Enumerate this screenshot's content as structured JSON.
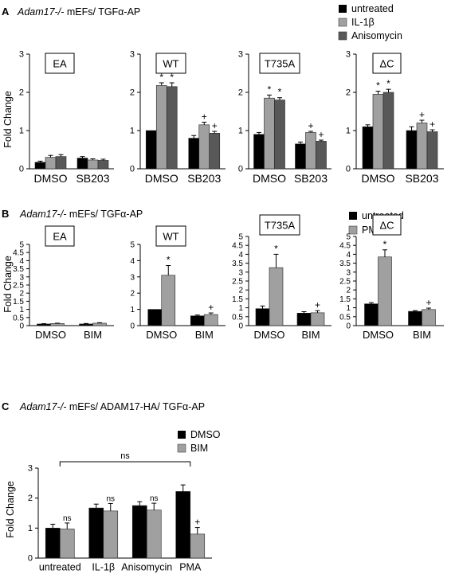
{
  "colors": {
    "black": "#000000",
    "light_gray": "#a0a0a0",
    "dark_gray": "#585858"
  },
  "panelA": {
    "letter": "A",
    "title_italic": "Adam17-/-",
    "title_rest": " mEFs/ TGFα-AP",
    "legend": [
      "untreated",
      "IL-1β",
      "Anisomycin"
    ],
    "ylabel": "Fold Change"
  },
  "panelB": {
    "letter": "B",
    "title_italic": "Adam17-/-",
    "title_rest": " mEFs/ TGFα-AP",
    "legend": [
      "untreated",
      "PMA"
    ],
    "ylabel": "Fold Change"
  },
  "panelC": {
    "letter": "C",
    "title_italic": "Adam17-/-",
    "title_rest": " mEFs/ ADAM17-HA/ TGFα-AP",
    "legend": [
      "DMSO",
      "BIM"
    ],
    "ylabel": "Fold Change",
    "bracket_label": "ns"
  },
  "chart_data": [
    {
      "id": "A-EA",
      "type": "bar",
      "box_label": "EA",
      "ylabel": "Fold Change",
      "ylim": [
        0,
        3
      ],
      "yticks": [
        0,
        1,
        2,
        3
      ],
      "categories": [
        "DMSO",
        "SB203"
      ],
      "series": [
        {
          "name": "untreated",
          "values": [
            0.17,
            0.28
          ],
          "errors": [
            0.03,
            0.04
          ]
        },
        {
          "name": "IL-1β",
          "values": [
            0.3,
            0.23
          ],
          "errors": [
            0.05,
            0.03
          ]
        },
        {
          "name": "Anisomycin",
          "values": [
            0.32,
            0.22
          ],
          "errors": [
            0.05,
            0.03
          ]
        }
      ],
      "marks": [
        [
          "",
          "",
          ""
        ],
        [
          "",
          "",
          ""
        ]
      ]
    },
    {
      "id": "A-WT",
      "type": "bar",
      "box_label": "WT",
      "ylim": [
        0,
        3
      ],
      "yticks": [
        0,
        1,
        2,
        3
      ],
      "categories": [
        "DMSO",
        "SB203"
      ],
      "series": [
        {
          "name": "untreated",
          "values": [
            1.0,
            0.8
          ],
          "errors": [
            0,
            0.07
          ]
        },
        {
          "name": "IL-1β",
          "values": [
            2.18,
            1.15
          ],
          "errors": [
            0.07,
            0.07
          ]
        },
        {
          "name": "Anisomycin",
          "values": [
            2.15,
            0.93
          ],
          "errors": [
            0.1,
            0.05
          ]
        }
      ],
      "marks": [
        [
          "",
          "*",
          "*"
        ],
        [
          "",
          "+",
          "+"
        ]
      ]
    },
    {
      "id": "A-T735A",
      "type": "bar",
      "box_label": "T735A",
      "ylim": [
        0,
        3
      ],
      "yticks": [
        0,
        1,
        2,
        3
      ],
      "categories": [
        "DMSO",
        "SB203"
      ],
      "series": [
        {
          "name": "untreated",
          "values": [
            0.9,
            0.65
          ],
          "errors": [
            0.05,
            0.05
          ]
        },
        {
          "name": "IL-1β",
          "values": [
            1.85,
            0.95
          ],
          "errors": [
            0.08,
            0.03
          ]
        },
        {
          "name": "Anisomycin",
          "values": [
            1.8,
            0.72
          ],
          "errors": [
            0.06,
            0.03
          ]
        }
      ],
      "marks": [
        [
          "",
          "*",
          "*"
        ],
        [
          "",
          "+",
          "+"
        ]
      ]
    },
    {
      "id": "A-dC",
      "type": "bar",
      "box_label": "ΔC",
      "ylim": [
        0,
        3
      ],
      "yticks": [
        0,
        1,
        2,
        3
      ],
      "categories": [
        "DMSO",
        "SB203"
      ],
      "series": [
        {
          "name": "untreated",
          "values": [
            1.1,
            1.0
          ],
          "errors": [
            0.05,
            0.1
          ]
        },
        {
          "name": "IL-1β",
          "values": [
            1.95,
            1.2
          ],
          "errors": [
            0.08,
            0.07
          ]
        },
        {
          "name": "Anisomycin",
          "values": [
            2.0,
            0.97
          ],
          "errors": [
            0.08,
            0.05
          ]
        }
      ],
      "marks": [
        [
          "",
          "*",
          "*"
        ],
        [
          "",
          "+",
          "+"
        ]
      ]
    },
    {
      "id": "B-EA",
      "type": "bar",
      "box_label": "EA",
      "ylabel": "Fold Change",
      "ylim": [
        0,
        5
      ],
      "yticks": [
        0,
        0.5,
        1,
        1.5,
        2,
        2.5,
        3,
        3.5,
        4,
        4.5,
        5
      ],
      "categories": [
        "DMSO",
        "BIM"
      ],
      "series": [
        {
          "name": "untreated",
          "values": [
            0.1,
            0.1
          ],
          "errors": [
            0.02,
            0.03
          ]
        },
        {
          "name": "PMA",
          "values": [
            0.13,
            0.15
          ],
          "errors": [
            0.02,
            0.03
          ]
        }
      ],
      "marks": [
        [
          "",
          ""
        ],
        [
          "",
          ""
        ]
      ]
    },
    {
      "id": "B-WT",
      "type": "bar",
      "box_label": "WT",
      "ylim": [
        0,
        5
      ],
      "yticks": [
        0,
        1,
        2,
        3,
        4,
        5
      ],
      "categories": [
        "DMSO",
        "BIM"
      ],
      "series": [
        {
          "name": "untreated",
          "values": [
            1.0,
            0.6
          ],
          "errors": [
            0,
            0.05
          ]
        },
        {
          "name": "PMA",
          "values": [
            3.1,
            0.68
          ],
          "errors": [
            0.6,
            0.1
          ]
        }
      ],
      "marks": [
        [
          "",
          "*"
        ],
        [
          "",
          "+"
        ]
      ]
    },
    {
      "id": "B-T735A",
      "type": "bar",
      "box_label": "T735A",
      "ylim": [
        0,
        5
      ],
      "yticks": [
        0,
        0.5,
        1,
        1.5,
        2,
        2.5,
        3,
        3.5,
        4,
        4.5,
        5
      ],
      "categories": [
        "DMSO",
        "BIM"
      ],
      "series": [
        {
          "name": "untreated",
          "values": [
            0.95,
            0.7
          ],
          "errors": [
            0.15,
            0.08
          ]
        },
        {
          "name": "PMA",
          "values": [
            3.25,
            0.72
          ],
          "errors": [
            0.75,
            0.12
          ]
        }
      ],
      "marks": [
        [
          "",
          "*"
        ],
        [
          "",
          "+"
        ]
      ]
    },
    {
      "id": "B-dC",
      "type": "bar",
      "box_label": "ΔC",
      "ylim": [
        0,
        5
      ],
      "yticks": [
        0,
        0.5,
        1,
        1.5,
        2,
        2.5,
        3,
        3.5,
        4,
        4.5,
        5
      ],
      "categories": [
        "DMSO",
        "BIM"
      ],
      "series": [
        {
          "name": "untreated",
          "values": [
            1.22,
            0.8
          ],
          "errors": [
            0.07,
            0.04
          ]
        },
        {
          "name": "PMA",
          "values": [
            3.85,
            0.9
          ],
          "errors": [
            0.4,
            0.08
          ]
        }
      ],
      "marks": [
        [
          "",
          "*"
        ],
        [
          "",
          "+"
        ]
      ]
    },
    {
      "id": "C",
      "type": "bar",
      "ylabel": "Fold Change",
      "ylim": [
        0,
        3
      ],
      "yticks": [
        0,
        1,
        2,
        3
      ],
      "categories": [
        "untreated",
        "IL-1β",
        "Anisomycin",
        "PMA"
      ],
      "series": [
        {
          "name": "DMSO",
          "values": [
            1.0,
            1.67,
            1.75,
            2.22
          ],
          "errors": [
            0.13,
            0.13,
            0.13,
            0.22
          ]
        },
        {
          "name": "BIM",
          "values": [
            0.97,
            1.57,
            1.6,
            0.8
          ],
          "errors": [
            0.2,
            0.25,
            0.23,
            0.22
          ]
        }
      ],
      "marks": [
        [
          "",
          "ns"
        ],
        [
          "",
          "ns"
        ],
        [
          "",
          "ns"
        ],
        [
          "",
          "+"
        ]
      ]
    }
  ]
}
